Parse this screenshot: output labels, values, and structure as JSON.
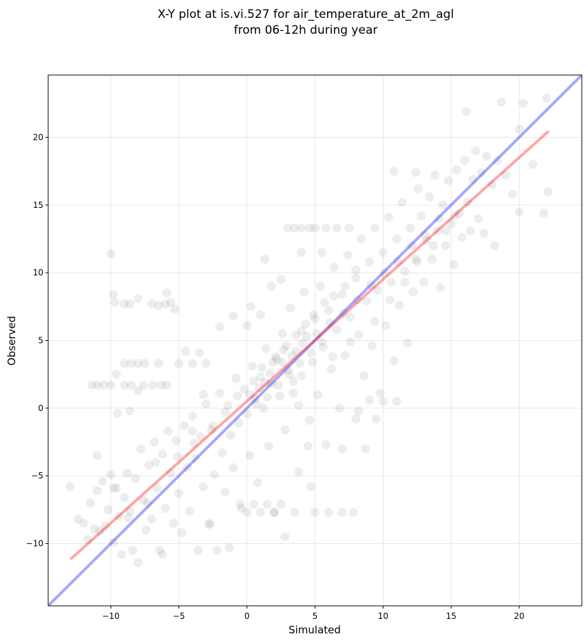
{
  "chart_data": {
    "type": "scatter",
    "title_lines": [
      "X-Y plot at is.vi.527 for air_temperature_at_2m_agl",
      "from 06-12h during year"
    ],
    "xlabel": "Simulated",
    "ylabel": "Observed",
    "xlim": [
      -14.6,
      24.6
    ],
    "ylim": [
      -14.6,
      24.6
    ],
    "xticks": [
      -10,
      -5,
      0,
      5,
      10,
      15,
      20
    ],
    "yticks": [
      -10,
      -5,
      0,
      5,
      10,
      15,
      20
    ],
    "xtick_labels": [
      "−10",
      "−5",
      "0",
      "5",
      "10",
      "15",
      "20"
    ],
    "ytick_labels": [
      "−10",
      "−5",
      "0",
      "5",
      "10",
      "15",
      "20"
    ],
    "grid": true,
    "series": [
      {
        "color": "#000000",
        "opacity": 0.07,
        "points": [
          [
            -13.0,
            -5.8
          ],
          [
            -12.4,
            -8.2
          ],
          [
            -12.0,
            -8.5
          ],
          [
            -11.7,
            -9.7
          ],
          [
            -11.5,
            -7.0
          ],
          [
            -11.2,
            -8.9
          ],
          [
            -11.0,
            -6.1
          ],
          [
            -10.8,
            -9.1
          ],
          [
            -10.6,
            -5.4
          ],
          [
            -10.4,
            -8.7
          ],
          [
            -10.2,
            -7.5
          ],
          [
            -10.0,
            -4.9
          ],
          [
            -9.8,
            -9.9
          ],
          [
            -9.6,
            -5.9
          ],
          [
            -9.4,
            -8.0
          ],
          [
            -9.2,
            -10.8
          ],
          [
            -9.0,
            -6.6
          ],
          [
            -8.8,
            -4.8
          ],
          [
            -8.6,
            -7.6
          ],
          [
            -8.4,
            -10.5
          ],
          [
            -8.2,
            -5.2
          ],
          [
            -8.0,
            -11.4
          ],
          [
            -7.8,
            -3.0
          ],
          [
            -7.6,
            -6.8
          ],
          [
            -7.4,
            -9.0
          ],
          [
            -7.2,
            -4.2
          ],
          [
            -7.0,
            -8.2
          ],
          [
            -6.8,
            -2.5
          ],
          [
            -6.6,
            -5.9
          ],
          [
            -6.4,
            -10.5
          ],
          [
            -6.2,
            -3.4
          ],
          [
            -6.0,
            -7.4
          ],
          [
            -5.8,
            -1.7
          ],
          [
            -5.6,
            -4.8
          ],
          [
            -5.4,
            -8.5
          ],
          [
            -5.2,
            -2.4
          ],
          [
            -5.0,
            -6.3
          ],
          [
            -4.8,
            -9.2
          ],
          [
            -4.6,
            -1.3
          ],
          [
            -4.4,
            -4.4
          ],
          [
            -4.2,
            -7.6
          ],
          [
            -4.0,
            -0.6
          ],
          [
            -3.8,
            -3.7
          ],
          [
            -3.6,
            -10.5
          ],
          [
            -3.4,
            -2.1
          ],
          [
            -3.2,
            -5.8
          ],
          [
            -3.0,
            0.3
          ],
          [
            -2.8,
            -8.6
          ],
          [
            -2.6,
            -1.6
          ],
          [
            -2.4,
            -4.9
          ],
          [
            -2.2,
            -10.5
          ],
          [
            -2.0,
            1.1
          ],
          [
            -1.8,
            -3.3
          ],
          [
            -1.6,
            -6.2
          ],
          [
            -1.4,
            0.2
          ],
          [
            -1.2,
            -2.0
          ],
          [
            -1.0,
            -4.4
          ],
          [
            -0.8,
            2.2
          ],
          [
            -0.6,
            -1.1
          ],
          [
            -0.4,
            -7.4
          ],
          [
            -0.2,
            1.4
          ],
          [
            0.0,
            -0.4
          ],
          [
            0.2,
            -3.5
          ],
          [
            0.4,
            3.1
          ],
          [
            0.6,
            0.7
          ],
          [
            0.8,
            -5.5
          ],
          [
            1.0,
            2.3
          ],
          [
            1.2,
            0.0
          ],
          [
            1.4,
            4.4
          ],
          [
            1.6,
            -2.8
          ],
          [
            1.8,
            1.8
          ],
          [
            2.0,
            -7.7
          ],
          [
            2.2,
            3.6
          ],
          [
            2.4,
            0.9
          ],
          [
            2.6,
            5.5
          ],
          [
            2.8,
            -1.6
          ],
          [
            3.0,
            2.8
          ],
          [
            3.2,
            7.4
          ],
          [
            3.4,
            1.1
          ],
          [
            3.6,
            4.2
          ],
          [
            3.8,
            -4.7
          ],
          [
            4.0,
            2.4
          ],
          [
            4.2,
            8.6
          ],
          [
            4.4,
            5.3
          ],
          [
            4.6,
            -0.9
          ],
          [
            4.8,
            3.4
          ],
          [
            5.0,
            6.6
          ],
          [
            5.2,
            1.0
          ],
          [
            5.4,
            9.0
          ],
          [
            5.6,
            4.5
          ],
          [
            5.8,
            -2.7
          ],
          [
            6.0,
            7.2
          ],
          [
            6.2,
            2.9
          ],
          [
            6.4,
            10.4
          ],
          [
            6.6,
            5.8
          ],
          [
            6.8,
            0.0
          ],
          [
            7.0,
            8.4
          ],
          [
            7.2,
            3.9
          ],
          [
            7.4,
            11.3
          ],
          [
            7.6,
            6.7
          ],
          [
            7.8,
            -7.7
          ],
          [
            8.0,
            9.6
          ],
          [
            8.2,
            5.4
          ],
          [
            8.4,
            12.5
          ],
          [
            8.6,
            2.4
          ],
          [
            8.8,
            7.9
          ],
          [
            9.0,
            10.8
          ],
          [
            9.2,
            4.6
          ],
          [
            9.4,
            13.3
          ],
          [
            9.6,
            8.7
          ],
          [
            9.8,
            1.1
          ],
          [
            10.0,
            11.5
          ],
          [
            10.2,
            6.1
          ],
          [
            10.4,
            14.1
          ],
          [
            10.6,
            9.3
          ],
          [
            10.8,
            3.5
          ],
          [
            11.0,
            12.5
          ],
          [
            11.2,
            7.6
          ],
          [
            11.4,
            15.2
          ],
          [
            11.6,
            10.1
          ],
          [
            11.8,
            4.8
          ],
          [
            12.0,
            13.3
          ],
          [
            12.2,
            8.6
          ],
          [
            12.4,
            11.0
          ],
          [
            12.6,
            16.2
          ],
          [
            12.8,
            14.2
          ],
          [
            13.0,
            9.3
          ],
          [
            13.2,
            12.4
          ],
          [
            13.4,
            15.6
          ],
          [
            13.6,
            11.0
          ],
          [
            13.8,
            17.2
          ],
          [
            14.0,
            13.1
          ],
          [
            14.2,
            8.9
          ],
          [
            14.4,
            15.0
          ],
          [
            14.6,
            12.0
          ],
          [
            14.8,
            16.8
          ],
          [
            15.0,
            13.6
          ],
          [
            15.2,
            10.6
          ],
          [
            15.4,
            17.6
          ],
          [
            15.6,
            14.4
          ],
          [
            15.8,
            12.6
          ],
          [
            16.0,
            18.3
          ],
          [
            16.2,
            15.2
          ],
          [
            16.4,
            13.1
          ],
          [
            16.6,
            16.9
          ],
          [
            16.8,
            19.0
          ],
          [
            17.0,
            14.0
          ],
          [
            17.2,
            17.4
          ],
          [
            17.4,
            12.9
          ],
          [
            17.6,
            18.6
          ],
          [
            18.0,
            16.5
          ],
          [
            18.2,
            12.0
          ],
          [
            18.4,
            18.3
          ],
          [
            18.7,
            22.6
          ],
          [
            19.0,
            17.2
          ],
          [
            19.5,
            15.8
          ],
          [
            20.0,
            20.6
          ],
          [
            20.0,
            14.5
          ],
          [
            20.3,
            22.5
          ],
          [
            21.0,
            18.0
          ],
          [
            21.8,
            14.4
          ],
          [
            22.0,
            22.9
          ],
          [
            22.1,
            16.0
          ],
          [
            16.1,
            21.9
          ],
          [
            -10.0,
            11.4
          ],
          [
            -9.8,
            8.4
          ],
          [
            -9.7,
            7.8
          ],
          [
            -9.0,
            7.7
          ],
          [
            -8.6,
            7.7
          ],
          [
            -8.0,
            8.1
          ],
          [
            -7.0,
            7.7
          ],
          [
            -6.5,
            7.6
          ],
          [
            -6.0,
            7.7
          ],
          [
            -5.6,
            7.8
          ],
          [
            -5.9,
            8.5
          ],
          [
            -5.3,
            7.3
          ],
          [
            -11.4,
            1.7
          ],
          [
            -11.0,
            1.7
          ],
          [
            -10.5,
            1.7
          ],
          [
            -10.0,
            1.7
          ],
          [
            -9.6,
            2.5
          ],
          [
            -9.0,
            1.7
          ],
          [
            -8.5,
            1.7
          ],
          [
            -8.0,
            1.3
          ],
          [
            -7.6,
            1.7
          ],
          [
            -6.9,
            1.7
          ],
          [
            -6.3,
            1.7
          ],
          [
            -5.9,
            1.7
          ],
          [
            -9.0,
            3.3
          ],
          [
            -8.5,
            3.3
          ],
          [
            -8.0,
            3.3
          ],
          [
            -7.5,
            3.3
          ],
          [
            -6.5,
            3.3
          ],
          [
            -5.0,
            3.3
          ],
          [
            -4.0,
            3.3
          ],
          [
            -3.5,
            4.1
          ],
          [
            -3.0,
            3.3
          ],
          [
            3.0,
            13.3
          ],
          [
            3.5,
            13.3
          ],
          [
            4.0,
            13.3
          ],
          [
            4.6,
            13.3
          ],
          [
            5.0,
            13.3
          ],
          [
            5.8,
            13.3
          ],
          [
            6.6,
            13.3
          ],
          [
            7.5,
            13.3
          ],
          [
            -0.5,
            -7.1
          ],
          [
            0.0,
            -7.7
          ],
          [
            0.5,
            -7.1
          ],
          [
            1.0,
            -7.7
          ],
          [
            1.5,
            -7.1
          ],
          [
            2.0,
            -7.7
          ],
          [
            2.5,
            -7.1
          ],
          [
            3.5,
            -7.7
          ],
          [
            5.0,
            -7.7
          ],
          [
            6.0,
            -7.7
          ],
          [
            7.0,
            -7.7
          ],
          [
            9.0,
            0.6
          ],
          [
            10.0,
            0.5
          ],
          [
            11.0,
            0.5
          ],
          [
            9.5,
            -0.8
          ],
          [
            8.0,
            -0.8
          ],
          [
            5.5,
            11.5
          ],
          [
            4.0,
            11.5
          ],
          [
            -11.0,
            -3.5
          ],
          [
            -8.6,
            -0.2
          ],
          [
            -9.5,
            -0.4
          ],
          [
            -4.5,
            4.2
          ],
          [
            -2.0,
            6.0
          ],
          [
            -1.0,
            6.8
          ],
          [
            0.0,
            6.1
          ],
          [
            1.0,
            6.9
          ],
          [
            10.8,
            17.5
          ],
          [
            12.4,
            17.4
          ],
          [
            7.0,
            -3.0
          ],
          [
            8.7,
            -3.0
          ],
          [
            4.7,
            -5.8
          ],
          [
            2.8,
            -9.5
          ],
          [
            -1.3,
            -10.3
          ],
          [
            -6.2,
            -10.8
          ],
          [
            -2.7,
            -8.5
          ],
          [
            1.3,
            11.0
          ],
          [
            1.8,
            9.0
          ],
          [
            -3.2,
            1.0
          ],
          [
            -4.0,
            -1.7
          ],
          [
            0.3,
            7.5
          ],
          [
            2.5,
            9.5
          ],
          [
            3.8,
            0.2
          ],
          [
            4.5,
            -2.8
          ],
          [
            6.3,
            3.8
          ],
          [
            7.6,
            4.9
          ],
          [
            8.2,
            -0.2
          ],
          [
            9.4,
            6.4
          ],
          [
            10.5,
            8.0
          ],
          [
            11.6,
            9.3
          ],
          [
            12.5,
            10.8
          ],
          [
            13.7,
            12.0
          ],
          [
            14.6,
            13.1
          ],
          [
            15.3,
            14.2
          ],
          [
            -9.8,
            -5.9
          ],
          [
            -8.7,
            -8.1
          ],
          [
            -7.3,
            -7.0
          ],
          [
            -6.7,
            -4.0
          ],
          [
            -5.1,
            -3.6
          ],
          [
            -3.9,
            -2.6
          ],
          [
            -2.5,
            -1.3
          ],
          [
            -1.6,
            -0.3
          ],
          [
            -0.7,
            0.9
          ],
          [
            0.9,
            1.5
          ],
          [
            1.7,
            2.6
          ],
          [
            2.6,
            3.4
          ],
          [
            3.3,
            3.9
          ],
          [
            4.1,
            4.8
          ],
          [
            5.1,
            5.5
          ],
          [
            6.1,
            6.3
          ],
          [
            7.1,
            7.0
          ],
          [
            8.1,
            8.0
          ],
          [
            9.1,
            9.1
          ],
          [
            10.1,
            10.0
          ],
          [
            11.1,
            10.8
          ],
          [
            12.1,
            12.0
          ],
          [
            13.1,
            12.8
          ],
          [
            14.1,
            14.0
          ],
          [
            0.5,
            2.0
          ],
          [
            1.1,
            3.0
          ],
          [
            2.1,
            3.8
          ],
          [
            2.9,
            4.6
          ],
          [
            3.6,
            5.4
          ],
          [
            4.3,
            6.2
          ],
          [
            1.5,
            0.8
          ],
          [
            2.3,
            1.7
          ],
          [
            3.1,
            2.5
          ],
          [
            3.9,
            3.3
          ],
          [
            4.7,
            4.1
          ],
          [
            5.5,
            4.9
          ],
          [
            0.2,
            1.0
          ],
          [
            0.7,
            0.3
          ],
          [
            1.3,
            1.9
          ],
          [
            1.9,
            3.4
          ],
          [
            2.7,
            4.3
          ],
          [
            3.4,
            2.0
          ],
          [
            4.0,
            5.7
          ],
          [
            4.9,
            6.9
          ],
          [
            5.7,
            7.8
          ],
          [
            6.4,
            8.3
          ],
          [
            7.2,
            9.0
          ],
          [
            8.0,
            10.2
          ]
        ]
      }
    ],
    "lines": [
      {
        "name": "1:1",
        "color": "#0000ff",
        "opacity": 0.35,
        "x": [
          -14.6,
          24.6
        ],
        "y": [
          -14.6,
          24.6
        ]
      },
      {
        "name": "fit",
        "color": "#ff0000",
        "opacity": 0.35,
        "x": [
          -12.9,
          22.1
        ],
        "y": [
          -11.1,
          20.4
        ]
      }
    ]
  }
}
